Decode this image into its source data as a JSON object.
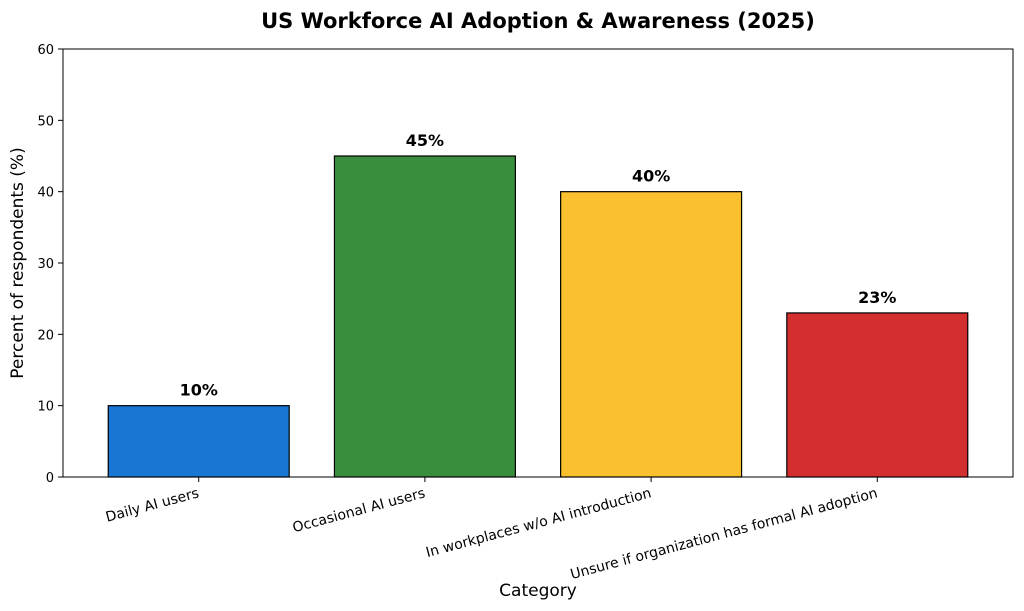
{
  "chart_data": {
    "type": "bar",
    "title": "US Workforce AI Adoption & Awareness (2025)",
    "xlabel": "Category",
    "ylabel": "Percent of respondents (%)",
    "categories": [
      "Daily AI users",
      "Occasional AI users",
      "In workplaces w/o AI introduction",
      "Unsure if organization has formal AI adoption"
    ],
    "values": [
      10,
      45,
      40,
      23
    ],
    "value_labels": [
      "10%",
      "45%",
      "40%",
      "23%"
    ],
    "colors": [
      "#1976d2",
      "#388e3c",
      "#fbc02d",
      "#d32f2f"
    ],
    "ylim": [
      0,
      60
    ],
    "yticks": [
      0,
      10,
      20,
      30,
      40,
      50,
      60
    ],
    "ytick_labels": [
      "0",
      "10",
      "20",
      "30",
      "40",
      "50",
      "60"
    ],
    "grid": false,
    "legend": "none"
  }
}
